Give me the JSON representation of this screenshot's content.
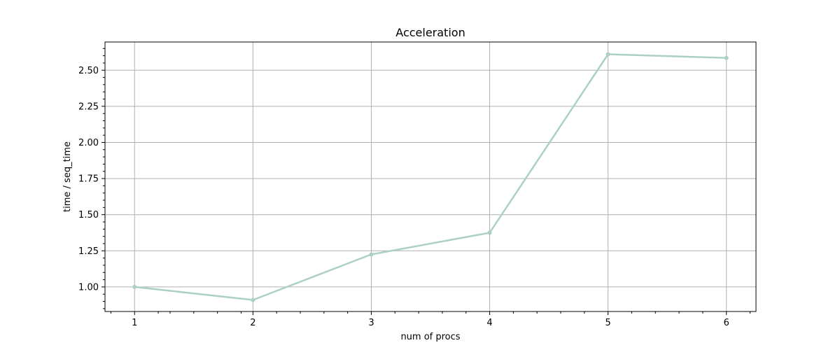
{
  "chart_data": {
    "type": "line",
    "title": "Acceleration",
    "xlabel": "num of procs",
    "ylabel": "time / seq_time",
    "x": [
      1,
      2,
      3,
      4,
      5,
      6
    ],
    "series": [
      {
        "values": [
          1.0,
          0.91,
          1.225,
          1.375,
          2.61,
          2.585
        ],
        "color": "#acd0c5"
      }
    ],
    "xticks": [
      1,
      2,
      3,
      4,
      5,
      6
    ],
    "yticks": [
      "1.00",
      "1.25",
      "1.50",
      "1.75",
      "2.00",
      "2.25",
      "2.50"
    ],
    "xlim": [
      0.75,
      6.25
    ],
    "ylim": [
      0.83,
      2.695
    ],
    "grid": true,
    "minor_ticks": true
  }
}
